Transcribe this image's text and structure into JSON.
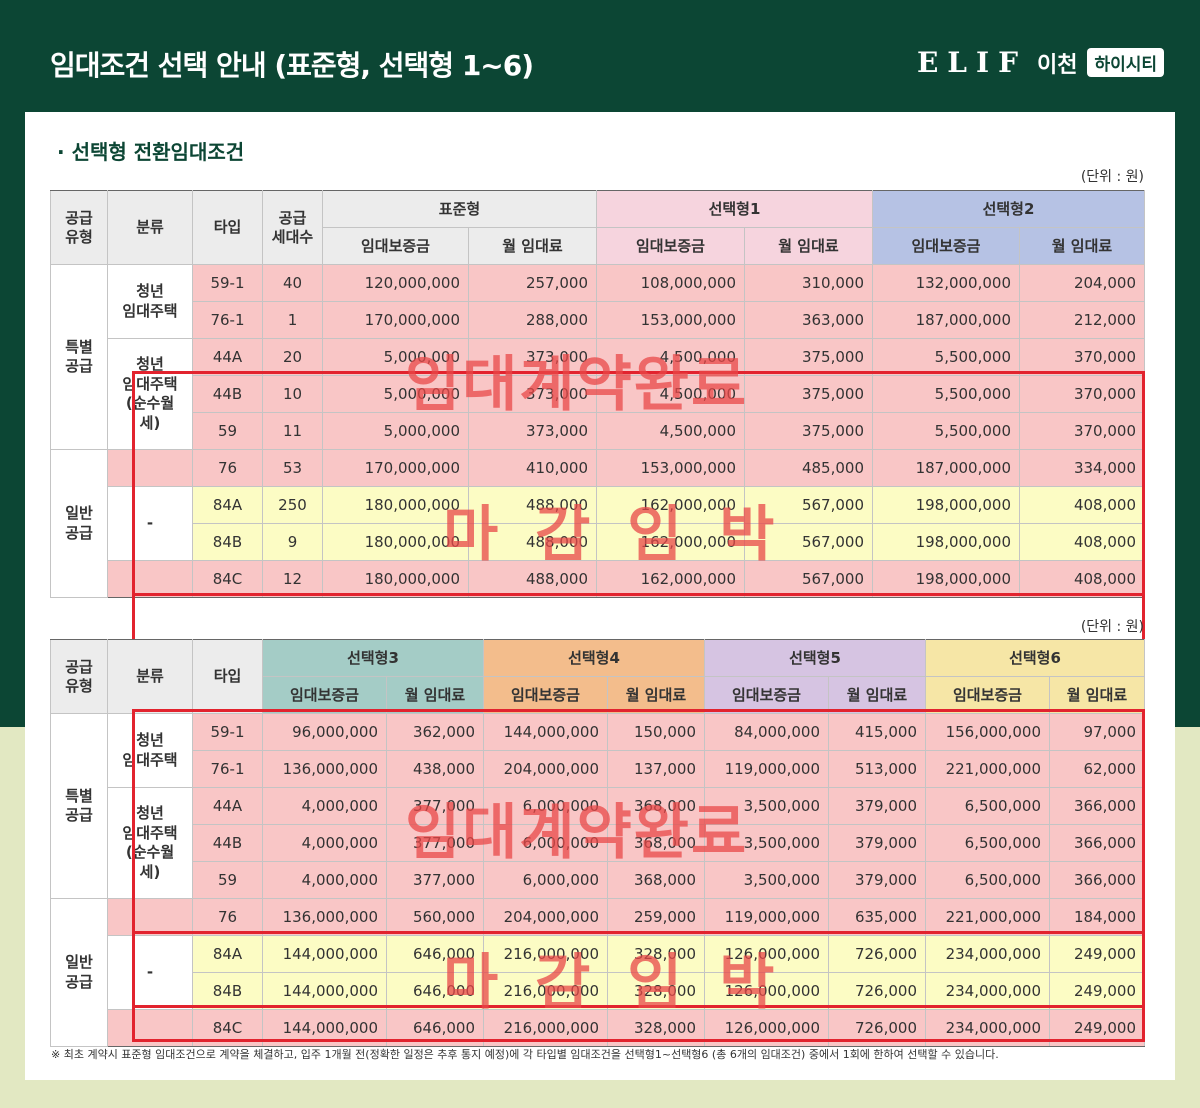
{
  "header": {
    "title": "임대조건 선택 안내 (표준형, 선택형 1~6)",
    "brand_logo": "ELIF",
    "brand_city": "이천",
    "brand_name": "하이시티"
  },
  "section_title": "선택형 전환임대조건",
  "bullet": "·",
  "unit": "(단위 : 원)",
  "overlay": {
    "stamp_complete": "임대계약완료",
    "stamp_closing": "마 감 임 박",
    "stamp_color": "#e84848"
  },
  "table1": {
    "head": {
      "supply_type": "공급\n유형",
      "category": "분류",
      "type": "타입",
      "households": "공급\n세대수",
      "groups": [
        "표준형",
        "선택형1",
        "선택형2"
      ],
      "deposit": "임대보증금",
      "rent": "월 임대료"
    },
    "groups_left": {
      "special": "특별\n공급",
      "general": "일반\n공급",
      "youth": "청년\n임대주택",
      "youth_monthly": "청년\n임대주택\n(순수월세)",
      "dash": "-"
    },
    "rows": [
      [
        "59-1",
        "40",
        "120,000,000",
        "257,000",
        "108,000,000",
        "310,000",
        "132,000,000",
        "204,000"
      ],
      [
        "76-1",
        "1",
        "170,000,000",
        "288,000",
        "153,000,000",
        "363,000",
        "187,000,000",
        "212,000"
      ],
      [
        "44A",
        "20",
        "5,000,000",
        "373,000",
        "4,500,000",
        "375,000",
        "5,500,000",
        "370,000"
      ],
      [
        "44B",
        "10",
        "5,000,000",
        "373,000",
        "4,500,000",
        "375,000",
        "5,500,000",
        "370,000"
      ],
      [
        "59",
        "11",
        "5,000,000",
        "373,000",
        "4,500,000",
        "375,000",
        "5,500,000",
        "370,000"
      ],
      [
        "76",
        "53",
        "170,000,000",
        "410,000",
        "153,000,000",
        "485,000",
        "187,000,000",
        "334,000"
      ],
      [
        "84A",
        "250",
        "180,000,000",
        "488,000",
        "162,000,000",
        "567,000",
        "198,000,000",
        "408,000"
      ],
      [
        "84B",
        "9",
        "180,000,000",
        "488,000",
        "162,000,000",
        "567,000",
        "198,000,000",
        "408,000"
      ],
      [
        "84C",
        "12",
        "180,000,000",
        "488,000",
        "162,000,000",
        "567,000",
        "198,000,000",
        "408,000"
      ]
    ]
  },
  "table2": {
    "head": {
      "supply_type": "공급\n유형",
      "category": "분류",
      "type": "타입",
      "groups": [
        "선택형3",
        "선택형4",
        "선택형5",
        "선택형6"
      ],
      "deposit": "임대보증금",
      "rent": "월 임대료"
    },
    "rows": [
      [
        "59-1",
        "96,000,000",
        "362,000",
        "144,000,000",
        "150,000",
        "84,000,000",
        "415,000",
        "156,000,000",
        "97,000"
      ],
      [
        "76-1",
        "136,000,000",
        "438,000",
        "204,000,000",
        "137,000",
        "119,000,000",
        "513,000",
        "221,000,000",
        "62,000"
      ],
      [
        "44A",
        "4,000,000",
        "377,000",
        "6,000,000",
        "368,000",
        "3,500,000",
        "379,000",
        "6,500,000",
        "366,000"
      ],
      [
        "44B",
        "4,000,000",
        "377,000",
        "6,000,000",
        "368,000",
        "3,500,000",
        "379,000",
        "6,500,000",
        "366,000"
      ],
      [
        "59",
        "4,000,000",
        "377,000",
        "6,000,000",
        "368,000",
        "3,500,000",
        "379,000",
        "6,500,000",
        "366,000"
      ],
      [
        "76",
        "136,000,000",
        "560,000",
        "204,000,000",
        "259,000",
        "119,000,000",
        "635,000",
        "221,000,000",
        "184,000"
      ],
      [
        "84A",
        "144,000,000",
        "646,000",
        "216,000,000",
        "328,000",
        "126,000,000",
        "726,000",
        "234,000,000",
        "249,000"
      ],
      [
        "84B",
        "144,000,000",
        "646,000",
        "216,000,000",
        "328,000",
        "126,000,000",
        "726,000",
        "234,000,000",
        "249,000"
      ],
      [
        "84C",
        "144,000,000",
        "646,000",
        "216,000,000",
        "328,000",
        "126,000,000",
        "726,000",
        "234,000,000",
        "249,000"
      ]
    ]
  },
  "footnote": "※ 최초 계약시 표준형 임대조건으로 계약을 체결하고, 입주 1개월 전(정확한 일정은 추후 통지 예정)에 각 타입별 임대조건을 선택형1~선택형6 (총 6개의 임대조건) 중에서 1회에 한하여 선택할 수 있습니다."
}
